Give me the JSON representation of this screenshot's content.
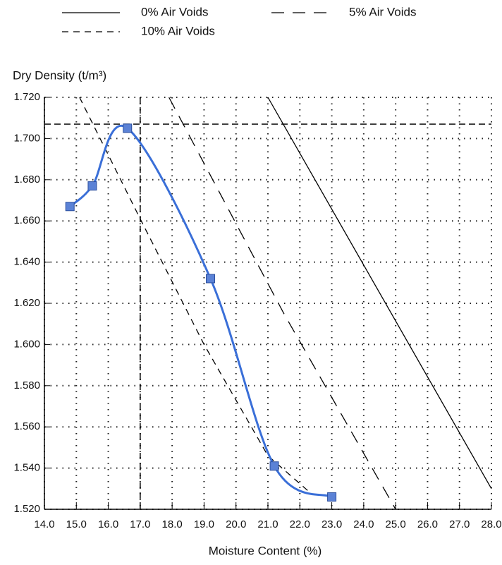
{
  "chart_data": {
    "type": "line",
    "y_label": "Dry Density (t/m³)",
    "x_label": "Moisture Content (%)",
    "xlim": [
      14.0,
      28.0
    ],
    "ylim": [
      1.52,
      1.72
    ],
    "xticks": [
      {
        "value": 14,
        "label": "14.0"
      },
      {
        "value": 15,
        "label": "15.0"
      },
      {
        "value": 16,
        "label": "16.0"
      },
      {
        "value": 17,
        "label": "17.0"
      },
      {
        "value": 18,
        "label": "18.0"
      },
      {
        "value": 19,
        "label": "19.0"
      },
      {
        "value": 20,
        "label": "20.0"
      },
      {
        "value": 21,
        "label": "21.0"
      },
      {
        "value": 22,
        "label": "22.0"
      },
      {
        "value": 23,
        "label": "23.0"
      },
      {
        "value": 24,
        "label": "24.0"
      },
      {
        "value": 25,
        "label": "25.0"
      },
      {
        "value": 26,
        "label": "26.0"
      },
      {
        "value": 27,
        "label": "27.0"
      },
      {
        "value": 28,
        "label": "28.0"
      }
    ],
    "yticks": [
      {
        "value": 1.52,
        "label": "1.520"
      },
      {
        "value": 1.54,
        "label": "1.540"
      },
      {
        "value": 1.56,
        "label": "1.560"
      },
      {
        "value": 1.58,
        "label": "1.580"
      },
      {
        "value": 1.6,
        "label": "1.600"
      },
      {
        "value": 1.62,
        "label": "1.620"
      },
      {
        "value": 1.64,
        "label": "1.640"
      },
      {
        "value": 1.66,
        "label": "1.660"
      },
      {
        "value": 1.68,
        "label": "1.680"
      },
      {
        "value": 1.7,
        "label": "1.700"
      },
      {
        "value": 1.72,
        "label": "1.720"
      }
    ],
    "grid": true,
    "series": [
      {
        "name": "0% Air Voids",
        "color": "#000000",
        "dash": "solid",
        "x": [
          21.0,
          28.0
        ],
        "values": [
          1.72,
          1.53
        ]
      },
      {
        "name": "5% Air Voids",
        "color": "#000000",
        "dash": "long",
        "x": [
          17.9,
          21.5,
          25.0
        ],
        "values": [
          1.72,
          1.615,
          1.52
        ]
      },
      {
        "name": "10% Air Voids",
        "color": "#000000",
        "dash": "short",
        "x": [
          15.1,
          17.0,
          19.0,
          21.0,
          22.4
        ],
        "values": [
          1.72,
          1.661,
          1.6,
          1.546,
          1.527
        ]
      }
    ],
    "compaction": {
      "color": "#3a6fd8",
      "marker_color": "#5b82d6",
      "x": [
        14.8,
        15.5,
        16.6,
        19.2,
        21.2,
        23.0
      ],
      "values": [
        1.667,
        1.677,
        1.705,
        1.632,
        1.541,
        1.526
      ]
    },
    "reference": {
      "x": 17.0,
      "y": 1.707
    }
  }
}
